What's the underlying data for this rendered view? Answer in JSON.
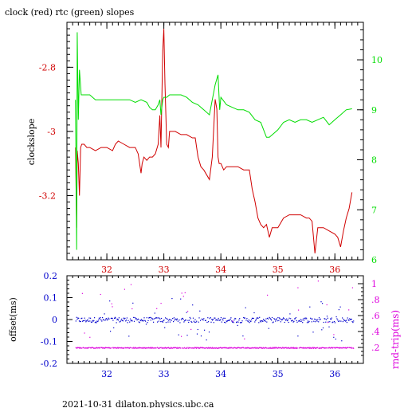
{
  "title": "clock (red) rtc (green) slopes",
  "footer": "2021-10-31  dilaton.physics.ubc.ca",
  "colors": {
    "red": "#d00000",
    "green": "#00dd00",
    "blue": "#0000cc",
    "magenta": "#dd00dd",
    "black": "#000000"
  },
  "chart_data": [
    {
      "type": "line",
      "title": "clock (red) rtc (green) slopes",
      "ylabel": "clockslope",
      "y2label": "",
      "xlim": [
        31.3,
        36.5
      ],
      "ylim": [
        -3.4,
        -2.66
      ],
      "y2lim": [
        6.0,
        10.75
      ],
      "xticks": [
        32,
        33,
        34,
        35,
        36
      ],
      "yticks": [
        -3.2,
        -3.0,
        -2.8
      ],
      "ytick_labels": [
        "-3.2",
        "-3",
        "-2.8"
      ],
      "y2ticks": [
        6,
        7,
        8,
        9,
        10
      ],
      "series": [
        {
          "color": "red",
          "axis": "left",
          "x": [
            31.45,
            31.47,
            31.48,
            31.5,
            31.52,
            31.54,
            31.56,
            31.6,
            31.65,
            31.7,
            31.8,
            31.9,
            32.0,
            32.1,
            32.15,
            32.2,
            32.3,
            32.4,
            32.5,
            32.55,
            32.6,
            32.62,
            32.65,
            32.7,
            32.75,
            32.8,
            32.85,
            32.9,
            32.93,
            32.95,
            32.98,
            33.0,
            33.02,
            33.05,
            33.08,
            33.1,
            33.2,
            33.3,
            33.4,
            33.5,
            33.55,
            33.6,
            33.65,
            33.7,
            33.8,
            33.85,
            33.9,
            33.93,
            33.95,
            33.97,
            34.0,
            34.05,
            34.1,
            34.2,
            34.3,
            34.4,
            34.5,
            34.55,
            34.6,
            34.65,
            34.7,
            34.75,
            34.8,
            34.85,
            34.9,
            35.0,
            35.1,
            35.2,
            35.3,
            35.4,
            35.5,
            35.55,
            35.6,
            35.65,
            35.7,
            35.8,
            35.9,
            36.0,
            36.05,
            36.1,
            36.15,
            36.2,
            36.25,
            36.3
          ],
          "y": [
            -3.05,
            -3.3,
            -3.06,
            -3.1,
            -3.2,
            -3.05,
            -3.04,
            -3.04,
            -3.05,
            -3.05,
            -3.06,
            -3.05,
            -3.05,
            -3.06,
            -3.04,
            -3.03,
            -3.04,
            -3.05,
            -3.05,
            -3.07,
            -3.13,
            -3.1,
            -3.08,
            -3.09,
            -3.08,
            -3.08,
            -3.07,
            -3.04,
            -2.95,
            -3.05,
            -2.75,
            -2.68,
            -2.85,
            -3.04,
            -3.05,
            -3.0,
            -3.0,
            -3.01,
            -3.01,
            -3.02,
            -3.02,
            -3.08,
            -3.11,
            -3.12,
            -3.15,
            -3.08,
            -2.9,
            -2.93,
            -3.08,
            -3.1,
            -3.1,
            -3.12,
            -3.11,
            -3.11,
            -3.11,
            -3.12,
            -3.12,
            -3.18,
            -3.22,
            -3.27,
            -3.29,
            -3.3,
            -3.29,
            -3.33,
            -3.3,
            -3.3,
            -3.27,
            -3.26,
            -3.26,
            -3.26,
            -3.27,
            -3.27,
            -3.28,
            -3.38,
            -3.3,
            -3.3,
            -3.31,
            -3.32,
            -3.33,
            -3.36,
            -3.31,
            -3.27,
            -3.24,
            -3.19
          ]
        },
        {
          "color": "green",
          "axis": "right",
          "x": [
            31.45,
            31.47,
            31.48,
            31.5,
            31.52,
            31.55,
            31.6,
            31.7,
            31.8,
            31.9,
            32.0,
            32.1,
            32.2,
            32.3,
            32.4,
            32.5,
            32.6,
            32.7,
            32.75,
            32.8,
            32.85,
            32.9,
            32.93,
            32.95,
            32.98,
            33.0,
            33.05,
            33.1,
            33.2,
            33.3,
            33.4,
            33.5,
            33.6,
            33.7,
            33.8,
            33.85,
            33.9,
            33.95,
            33.98,
            34.0,
            34.1,
            34.2,
            34.3,
            34.4,
            34.5,
            34.6,
            34.7,
            34.75,
            34.8,
            34.85,
            34.9,
            35.0,
            35.1,
            35.2,
            35.3,
            35.4,
            35.5,
            35.6,
            35.7,
            35.8,
            35.9,
            36.0,
            36.1,
            36.2,
            36.3
          ],
          "y": [
            9.2,
            6.2,
            10.55,
            8.8,
            9.8,
            9.3,
            9.3,
            9.3,
            9.2,
            9.2,
            9.2,
            9.2,
            9.2,
            9.2,
            9.2,
            9.15,
            9.2,
            9.15,
            9.05,
            9.0,
            9.0,
            9.1,
            9.2,
            8.9,
            9.2,
            9.25,
            9.25,
            9.3,
            9.3,
            9.3,
            9.25,
            9.15,
            9.1,
            9.0,
            8.9,
            9.2,
            9.5,
            9.7,
            9.0,
            9.25,
            9.1,
            9.05,
            9.0,
            9.0,
            8.95,
            8.8,
            8.75,
            8.6,
            8.45,
            8.45,
            8.5,
            8.6,
            8.75,
            8.8,
            8.75,
            8.8,
            8.8,
            8.75,
            8.8,
            8.85,
            8.7,
            8.8,
            8.9,
            9.0,
            9.02
          ]
        }
      ]
    },
    {
      "type": "scatter",
      "ylabel": "offset(ms)",
      "y2label": "rnd-trip(ms)",
      "xlim": [
        31.3,
        36.5
      ],
      "ylim": [
        -0.2,
        0.2
      ],
      "y2lim": [
        0.0,
        1.1
      ],
      "xticks": [
        32,
        33,
        34,
        35,
        36
      ],
      "yticks": [
        -0.2,
        -0.1,
        0,
        0.1,
        0.2
      ],
      "y2ticks": [
        0.2,
        0.4,
        0.6,
        0.8,
        1.0
      ],
      "y2tick_labels": [
        ".2",
        ".4",
        ".6",
        ".8",
        "1"
      ],
      "series": [
        {
          "color": "blue",
          "axis": "left",
          "name": "offset",
          "center": 0.0,
          "spread": 0.012,
          "outlier_spread": 0.1
        },
        {
          "color": "magenta",
          "axis": "right",
          "name": "rnd-trip",
          "center": 0.2,
          "spread": 0.006,
          "outlier_max": 1.05
        }
      ]
    }
  ]
}
